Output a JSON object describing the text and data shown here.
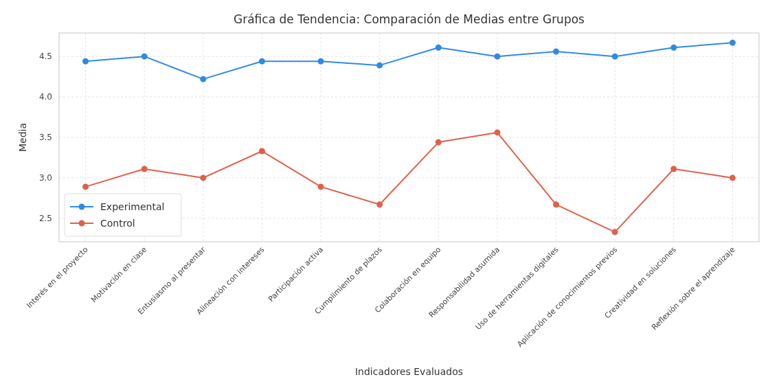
{
  "chart_data": {
    "type": "line",
    "title": "Gráfica de Tendencia: Comparación de Medias entre Grupos",
    "xlabel": "Indicadores Evaluados",
    "ylabel": "Media",
    "categories": [
      "Interés en el proyecto",
      "Motivación en clase",
      "Entusiasmo al presentar",
      "Alineación con intereses",
      "Participación activa",
      "Cumplimiento de plazos",
      "Colaboración en equipo",
      "Responsabilidad asumida",
      "Uso de herramientas digitales",
      "Aplicación de conocimientos previos",
      "Creatividad en soluciones",
      "Reflexión sobre el aprendizaje"
    ],
    "series": [
      {
        "name": "Experimental",
        "color": "#2f8ae5",
        "values": [
          4.44,
          4.5,
          4.22,
          4.44,
          4.44,
          4.39,
          4.61,
          4.5,
          4.56,
          4.5,
          4.61,
          4.67
        ]
      },
      {
        "name": "Control",
        "color": "#e0604a",
        "values": [
          2.89,
          3.11,
          3.0,
          3.33,
          2.89,
          2.67,
          3.44,
          3.56,
          2.67,
          2.33,
          3.11,
          3.0
        ]
      }
    ],
    "ylim": [
      2.21,
      4.79
    ],
    "yticks": [
      {
        "value": 2.5,
        "label": "2.5"
      },
      {
        "value": 3,
        "label": "3.0"
      },
      {
        "value": 3.5,
        "label": "3.5"
      },
      {
        "value": 4,
        "label": "4.0"
      },
      {
        "value": 4.5,
        "label": "4.5"
      }
    ],
    "grid": true,
    "legend": "bottom left",
    "marker": "circle",
    "line_style": "solid"
  }
}
